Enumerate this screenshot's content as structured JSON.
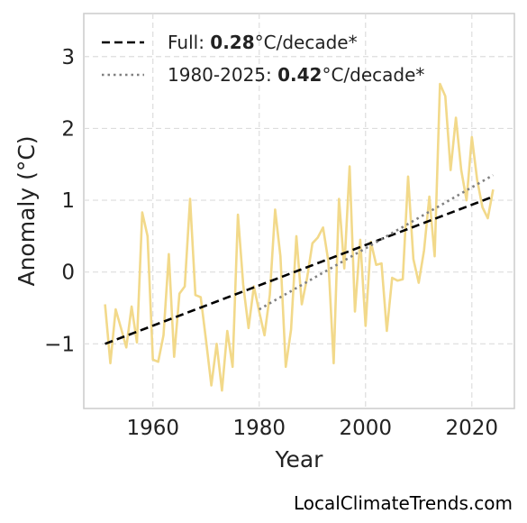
{
  "chart_data": {
    "type": "line",
    "xlabel": "Year",
    "ylabel": "Anomaly (°C)",
    "xlim": [
      1947,
      2028
    ],
    "ylim": [
      -1.9,
      3.6
    ],
    "xticks": [
      1960,
      1980,
      2000,
      2020
    ],
    "yticks": [
      -1,
      0,
      1,
      2,
      3
    ],
    "ytick_labels": [
      "−1",
      "0",
      "1",
      "2",
      "3"
    ],
    "grid": true,
    "legend_position": "top-left",
    "series": [
      {
        "color": "#f2d98a",
        "style": "solid",
        "x": [
          1951,
          1952,
          1953,
          1954,
          1955,
          1956,
          1957,
          1958,
          1959,
          1960,
          1961,
          1962,
          1963,
          1964,
          1965,
          1966,
          1967,
          1968,
          1969,
          1970,
          1971,
          1972,
          1973,
          1974,
          1975,
          1976,
          1977,
          1978,
          1979,
          1980,
          1981,
          1982,
          1983,
          1984,
          1985,
          1986,
          1987,
          1988,
          1989,
          1990,
          1991,
          1992,
          1993,
          1994,
          1995,
          1996,
          1997,
          1998,
          1999,
          2000,
          2001,
          2002,
          2003,
          2004,
          2005,
          2006,
          2007,
          2008,
          2009,
          2010,
          2011,
          2012,
          2013,
          2014,
          2015,
          2016,
          2017,
          2018,
          2019,
          2020,
          2021,
          2022,
          2023,
          2024
        ],
        "y": [
          -0.45,
          -1.27,
          -0.52,
          -0.78,
          -1.05,
          -0.48,
          -0.98,
          0.83,
          0.5,
          -1.22,
          -1.25,
          -0.88,
          0.25,
          -1.18,
          -0.3,
          -0.2,
          1.02,
          -0.32,
          -0.35,
          -0.95,
          -1.58,
          -1.0,
          -1.65,
          -0.82,
          -1.32,
          0.8,
          -0.18,
          -0.78,
          -0.2,
          -0.55,
          -0.88,
          -0.32,
          0.87,
          0.22,
          -1.32,
          -0.8,
          0.5,
          -0.45,
          -0.08,
          0.4,
          0.48,
          0.62,
          0.15,
          -1.27,
          1.02,
          0.05,
          1.47,
          -0.55,
          0.45,
          -0.75,
          0.42,
          0.1,
          0.12,
          -0.82,
          -0.08,
          -0.12,
          -0.1,
          1.33,
          0.18,
          -0.15,
          0.3,
          1.05,
          0.22,
          2.62,
          2.45,
          1.42,
          2.15,
          1.42,
          1.0,
          1.88,
          1.28,
          0.9,
          0.75,
          1.15
        ]
      },
      {
        "name": "Full",
        "label_suffix_value": "0.28",
        "label_unit": "°C/decade*",
        "color": "#000000",
        "style": "dashed",
        "x": [
          1951,
          2024
        ],
        "y": [
          -1.0,
          1.05
        ]
      },
      {
        "name": "1980-2025",
        "label_suffix_value": "0.42",
        "label_unit": "°C/decade*",
        "color": "#808080",
        "style": "dotted",
        "x": [
          1980,
          2024
        ],
        "y": [
          -0.52,
          1.35
        ]
      }
    ]
  },
  "watermark": "LocalClimateTrends.com"
}
